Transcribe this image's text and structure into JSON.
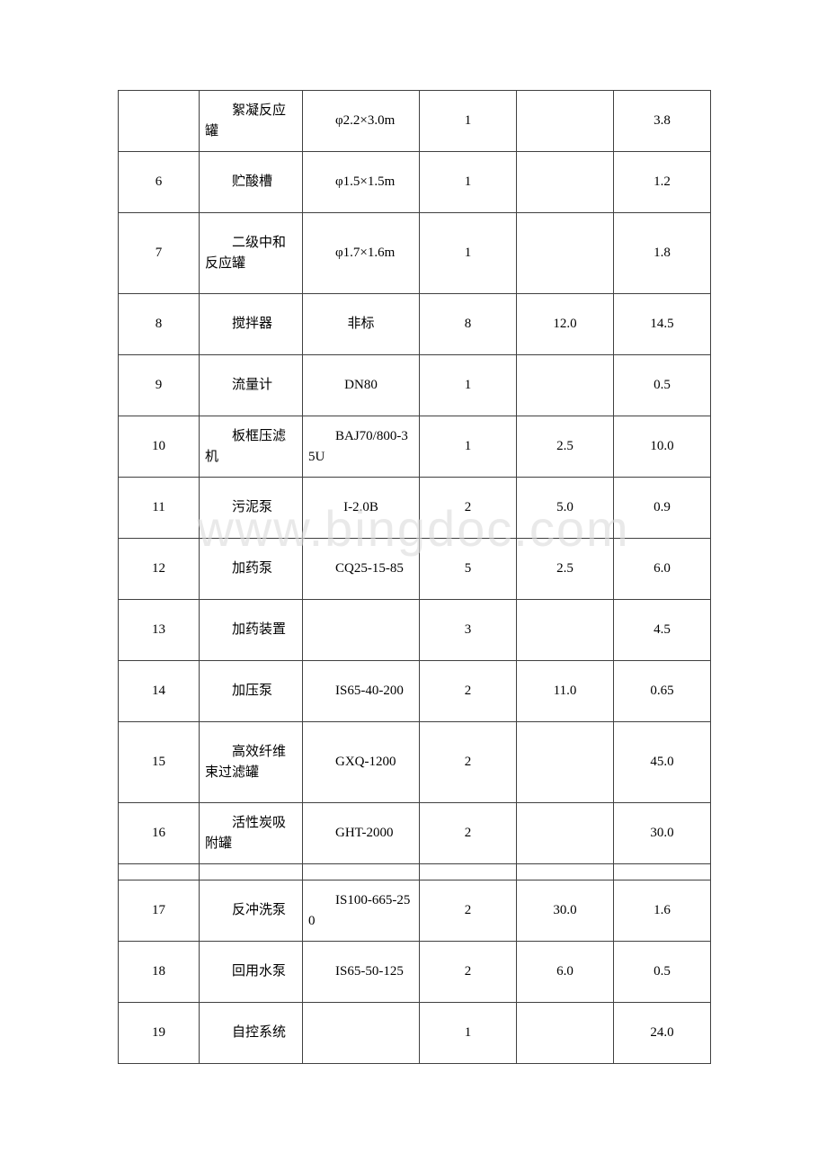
{
  "watermark": "www.bingdoc.com",
  "columns": [
    "seq",
    "name",
    "spec",
    "qty",
    "power",
    "cost"
  ],
  "gap_after_index": 11,
  "rows": [
    {
      "seq": "",
      "name": "絮凝反应罐",
      "spec": "φ2.2×3.0m",
      "qty": "1",
      "power": "",
      "cost": "3.8",
      "h": "row",
      "spec_center": false
    },
    {
      "seq": "6",
      "name": "贮酸槽",
      "spec": "φ1.5×1.5m",
      "qty": "1",
      "power": "",
      "cost": "1.2",
      "h": "row",
      "spec_center": false
    },
    {
      "seq": "7",
      "name": "二级中和反应罐",
      "spec": "φ1.7×1.6m",
      "qty": "1",
      "power": "",
      "cost": "1.8",
      "h": "row3",
      "spec_center": false
    },
    {
      "seq": "8",
      "name": "搅拌器",
      "spec": "非标",
      "qty": "8",
      "power": "12.0",
      "cost": "14.5",
      "h": "row",
      "spec_center": true
    },
    {
      "seq": "9",
      "name": "流量计",
      "spec": "DN80",
      "qty": "1",
      "power": "",
      "cost": "0.5",
      "h": "row",
      "spec_center": true
    },
    {
      "seq": "10",
      "name": "板框压滤机",
      "spec": "BAJ70/800-35U",
      "qty": "1",
      "power": "2.5",
      "cost": "10.0",
      "h": "row",
      "spec_center": false
    },
    {
      "seq": "11",
      "name": "污泥泵",
      "spec": "I-2.0B",
      "qty": "2",
      "power": "5.0",
      "cost": "0.9",
      "h": "row",
      "spec_center": true
    },
    {
      "seq": "12",
      "name": "加药泵",
      "spec": "CQ25-15-85",
      "qty": "5",
      "power": "2.5",
      "cost": "6.0",
      "h": "row",
      "spec_center": false
    },
    {
      "seq": "13",
      "name": "加药装置",
      "spec": "",
      "qty": "3",
      "power": "",
      "cost": "4.5",
      "h": "row",
      "spec_center": false
    },
    {
      "seq": "14",
      "name": "加压泵",
      "spec": "IS65-40-200",
      "qty": "2",
      "power": "11.0",
      "cost": "0.65",
      "h": "row",
      "spec_center": false
    },
    {
      "seq": "15",
      "name": "高效纤维束过滤罐",
      "spec": "GXQ-1200",
      "qty": "2",
      "power": "",
      "cost": "45.0",
      "h": "row3",
      "spec_center": false
    },
    {
      "seq": "16",
      "name": "活性炭吸附罐",
      "spec": "GHT-2000",
      "qty": "2",
      "power": "",
      "cost": "30.0",
      "h": "row",
      "spec_center": false
    },
    {
      "seq": "17",
      "name": "反冲洗泵",
      "spec": "IS100-665-250",
      "qty": "2",
      "power": "30.0",
      "cost": "1.6",
      "h": "row",
      "spec_center": false
    },
    {
      "seq": "18",
      "name": "回用水泵",
      "spec": "IS65-50-125",
      "qty": "2",
      "power": "6.0",
      "cost": "0.5",
      "h": "row",
      "spec_center": false
    },
    {
      "seq": "19",
      "name": "自控系统",
      "spec": "",
      "qty": "1",
      "power": "",
      "cost": "24.0",
      "h": "row",
      "spec_center": false
    }
  ]
}
